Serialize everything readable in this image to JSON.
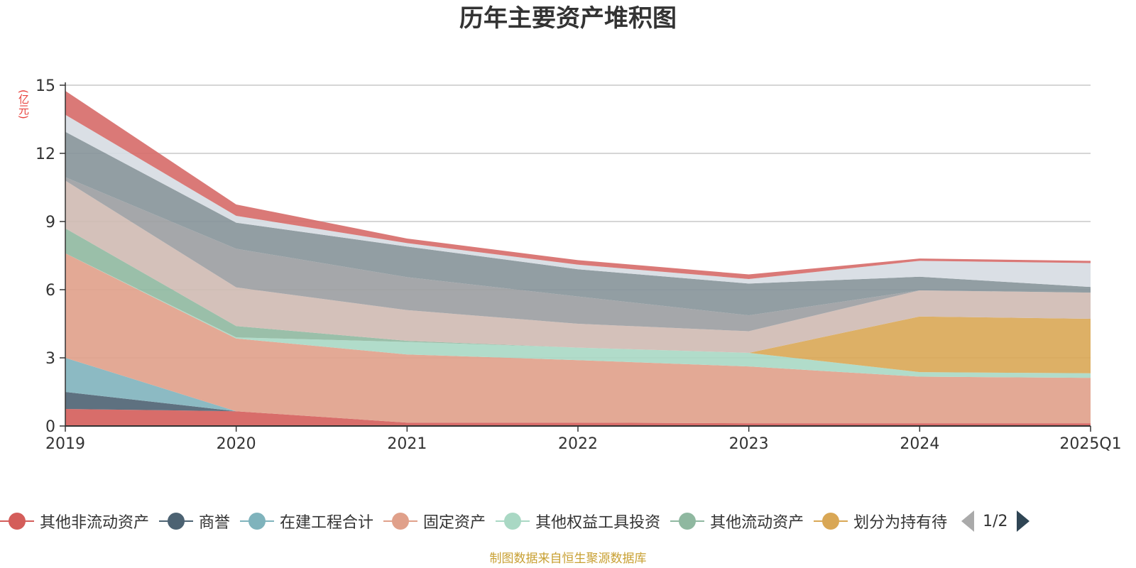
{
  "title": "历年主要资产堆积图",
  "unit_label": "(亿元)",
  "source_note": "制图数据来自恒生聚源数据库",
  "legend_pager": "1/2",
  "chart_data": {
    "type": "area",
    "stacked": true,
    "title": "历年主要资产堆积图",
    "ylabel": "(亿元)",
    "ylim": [
      0,
      15
    ],
    "yticks": [
      0,
      3,
      6,
      9,
      12,
      15
    ],
    "grid": true,
    "legend_position": "bottom",
    "categories": [
      "2019",
      "2020",
      "2021",
      "2022",
      "2023",
      "2024",
      "2025Q1"
    ],
    "series": [
      {
        "name": "其他非流动资产",
        "color": "#d45d5a",
        "values": [
          0.75,
          0.65,
          0.15,
          0.15,
          0.12,
          0.12,
          0.12
        ],
        "legend": true
      },
      {
        "name": "商誉",
        "color": "#4c6272",
        "values": [
          0.75,
          0,
          0,
          0,
          0,
          0,
          0
        ],
        "legend": true
      },
      {
        "name": "在建工程合计",
        "color": "#7fb3bc",
        "values": [
          1.5,
          0,
          0,
          0,
          0,
          0,
          0
        ],
        "legend": true
      },
      {
        "name": "固定资产",
        "color": "#e0a08a",
        "values": [
          4.6,
          3.2,
          3.0,
          2.75,
          2.5,
          2.05,
          2.0
        ],
        "legend": true
      },
      {
        "name": "其他权益工具投资",
        "color": "#a9d8c4",
        "values": [
          0,
          0.05,
          0.55,
          0.55,
          0.6,
          0.2,
          0.2
        ],
        "legend": true
      },
      {
        "name": "其他流动资产",
        "color": "#8fb8a0",
        "values": [
          1.1,
          0.5,
          0.05,
          0,
          0,
          0,
          0
        ],
        "legend": true
      },
      {
        "name": "划分为持有待",
        "color": "#d9a755",
        "values": [
          0,
          0,
          0,
          0,
          0,
          2.45,
          2.4
        ],
        "legend": true
      },
      {
        "name": "",
        "color": "#cfbab3",
        "values": [
          2.1,
          1.7,
          1.35,
          1.05,
          0.95,
          1.15,
          1.15
        ],
        "legend": false
      },
      {
        "name": "",
        "color": "#9b9da1",
        "values": [
          0.15,
          1.7,
          1.45,
          1.2,
          0.7,
          0,
          0
        ],
        "legend": false
      },
      {
        "name": "",
        "color": "#869399",
        "values": [
          2.0,
          1.15,
          1.35,
          1.2,
          1.4,
          0.6,
          0.25
        ],
        "legend": false
      },
      {
        "name": "",
        "color": "#d6dbe2",
        "values": [
          0.75,
          0.3,
          0.15,
          0.2,
          0.2,
          0.7,
          1.05
        ],
        "legend": false
      },
      {
        "name": "",
        "color": "#d66a68",
        "values": [
          1.05,
          0.5,
          0.2,
          0.2,
          0.2,
          0.1,
          0.1
        ],
        "legend": false
      }
    ]
  }
}
